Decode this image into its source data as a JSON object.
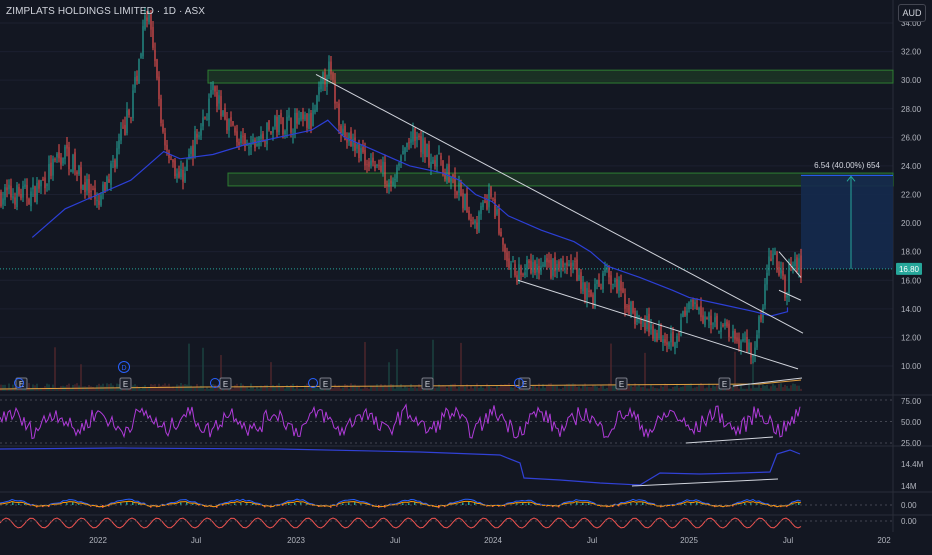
{
  "header": {
    "title": "ZIMPLATS HOLDINGS LIMITED · 1D · ASX",
    "currency": "AUD"
  },
  "colors": {
    "background": "#131722",
    "up": "#26a69a",
    "down": "#ef5350",
    "ma": "#2c3fd6",
    "rsi": "#b03bd9",
    "obv": "#3141d6",
    "zone_fill": "#1e3a26",
    "zone_stroke": "#2e7d32",
    "trendline": "#d1d4dc",
    "target_box": "#152a4e",
    "price_tag": "#26a69a"
  },
  "icons": {
    "earnings": "earnings-icon",
    "dividend": "dividend-icon"
  },
  "chart_data": [
    {
      "type": "line",
      "name": "price",
      "x": [
        "2021-09",
        "2021-11",
        "2022-01",
        "2022-03",
        "2022-04",
        "2022-05",
        "2022-06",
        "2022-08",
        "2022-10",
        "2022-12",
        "2023-02",
        "2023-03",
        "2023-04",
        "2023-06",
        "2023-07",
        "2023-08",
        "2023-10",
        "2023-11",
        "2023-12",
        "2024-01",
        "2024-02",
        "2024-04",
        "2024-06",
        "2024-07",
        "2024-08",
        "2024-10",
        "2024-12",
        "2025-01",
        "2025-03",
        "2025-05",
        "2025-06",
        "2025-07",
        "2025-07"
      ],
      "series": [
        {
          "values": [
            22,
            25,
            21,
            28,
            35,
            26,
            23,
            29,
            25,
            27,
            27,
            31,
            26,
            24,
            23,
            26,
            24,
            22,
            20,
            22,
            16.5,
            16.8,
            17,
            14.5,
            16.5,
            13,
            12,
            14,
            13,
            11,
            18,
            15,
            16.8
          ]
        }
      ],
      "ma_values": [
        19,
        21,
        22,
        23,
        24,
        25,
        24.5,
        24.8,
        25.5,
        26,
        26.5,
        27.2,
        26,
        25,
        24.5,
        24,
        23.5,
        23,
        22,
        21.5,
        20.5,
        19.5,
        18.7,
        18,
        17,
        16.2,
        15.3,
        14.8,
        14.3,
        13.8,
        13.5,
        13.8,
        14.1
      ],
      "ylim": [
        9.5,
        35
      ],
      "yticks": [
        "34.00",
        "32.00",
        "30.00",
        "28.00",
        "26.00",
        "24.00",
        "22.00",
        "20.00",
        "18.00",
        "16.00",
        "14.00",
        "12.00",
        "10.00"
      ],
      "last_price": "16.80",
      "target_label": "6.54 (40.00%) 654",
      "resistance_zones": [
        [
          29.8,
          30.7
        ],
        [
          22.6,
          23.5
        ]
      ],
      "event_markers": [
        "E",
        "E",
        "E",
        "E",
        "E",
        "E",
        "E",
        "E",
        "D"
      ]
    },
    {
      "type": "line",
      "name": "rsi",
      "ylim": [
        25,
        75
      ],
      "yticks": [
        "75.00",
        "50.00",
        "25.00"
      ]
    },
    {
      "type": "line",
      "name": "obv",
      "yticks": [
        "14.4M",
        "14M"
      ]
    },
    {
      "type": "line",
      "name": "oscillator",
      "yticks": [
        "0.00",
        "0.00"
      ]
    }
  ],
  "x_axis": {
    "labels": [
      "2022",
      "Jul",
      "2023",
      "Jul",
      "2024",
      "Jul",
      "2025",
      "Jul",
      "202"
    ]
  }
}
